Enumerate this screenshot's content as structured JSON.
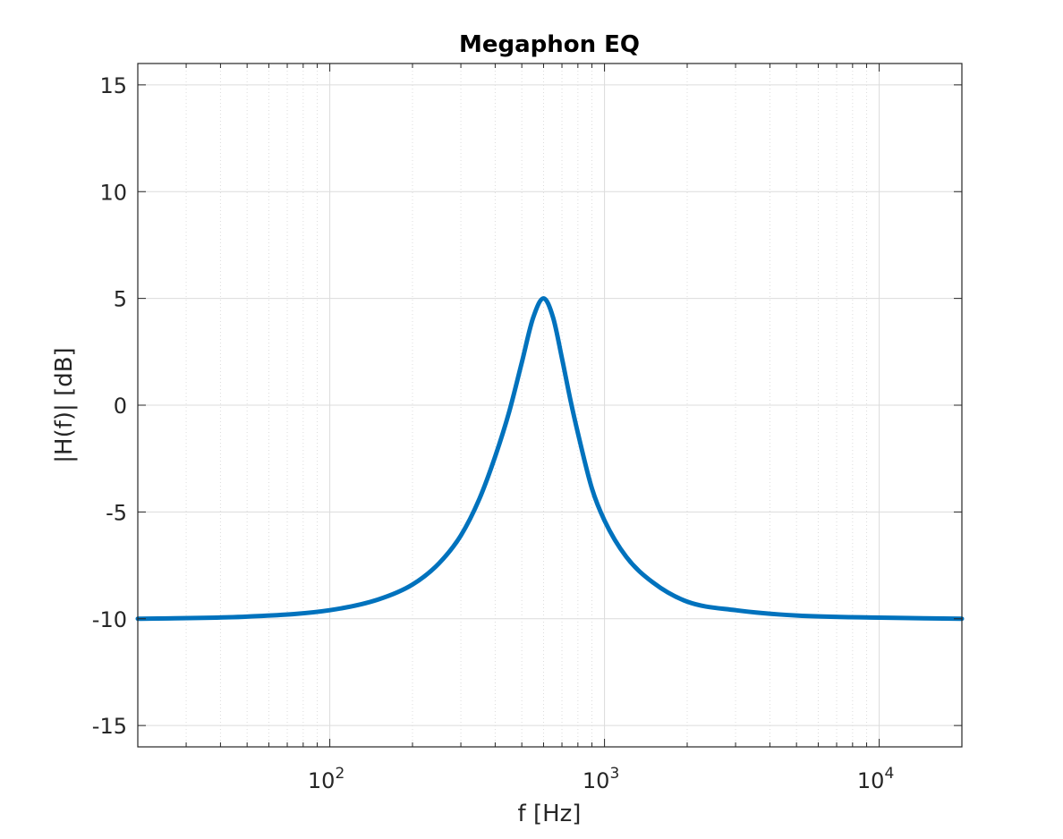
{
  "chart_data": {
    "type": "line",
    "title": "Megaphon EQ",
    "xlabel": "f [Hz]",
    "ylabel": "|H(f)| [dB]",
    "xscale": "log",
    "xlim": [
      20,
      20000
    ],
    "ylim": [
      -16,
      16
    ],
    "yticks": [
      -15,
      -10,
      -5,
      0,
      5,
      10,
      15
    ],
    "xticks": [
      {
        "base": "10",
        "exp": "2",
        "value": 100
      },
      {
        "base": "10",
        "exp": "3",
        "value": 1000
      },
      {
        "base": "10",
        "exp": "4",
        "value": 10000
      }
    ],
    "grid": true,
    "series": [
      {
        "color": "#0072BD",
        "peak_frequency_hz": 600,
        "peak_db": 5,
        "baseline_db": -10,
        "x": [
          20,
          50,
          100,
          150,
          200,
          250,
          300,
          350,
          400,
          450,
          500,
          550,
          600,
          650,
          700,
          750,
          800,
          900,
          1000,
          1200,
          1500,
          2000,
          3000,
          5000,
          10000,
          20000
        ],
        "y": [
          -10.0,
          -9.9,
          -9.6,
          -9.1,
          -8.4,
          -7.4,
          -6.1,
          -4.4,
          -2.4,
          -0.3,
          2.0,
          4.1,
          5.0,
          4.1,
          2.2,
          0.3,
          -1.3,
          -3.9,
          -5.4,
          -7.1,
          -8.3,
          -9.2,
          -9.6,
          -9.85,
          -9.95,
          -10.0
        ]
      }
    ]
  }
}
